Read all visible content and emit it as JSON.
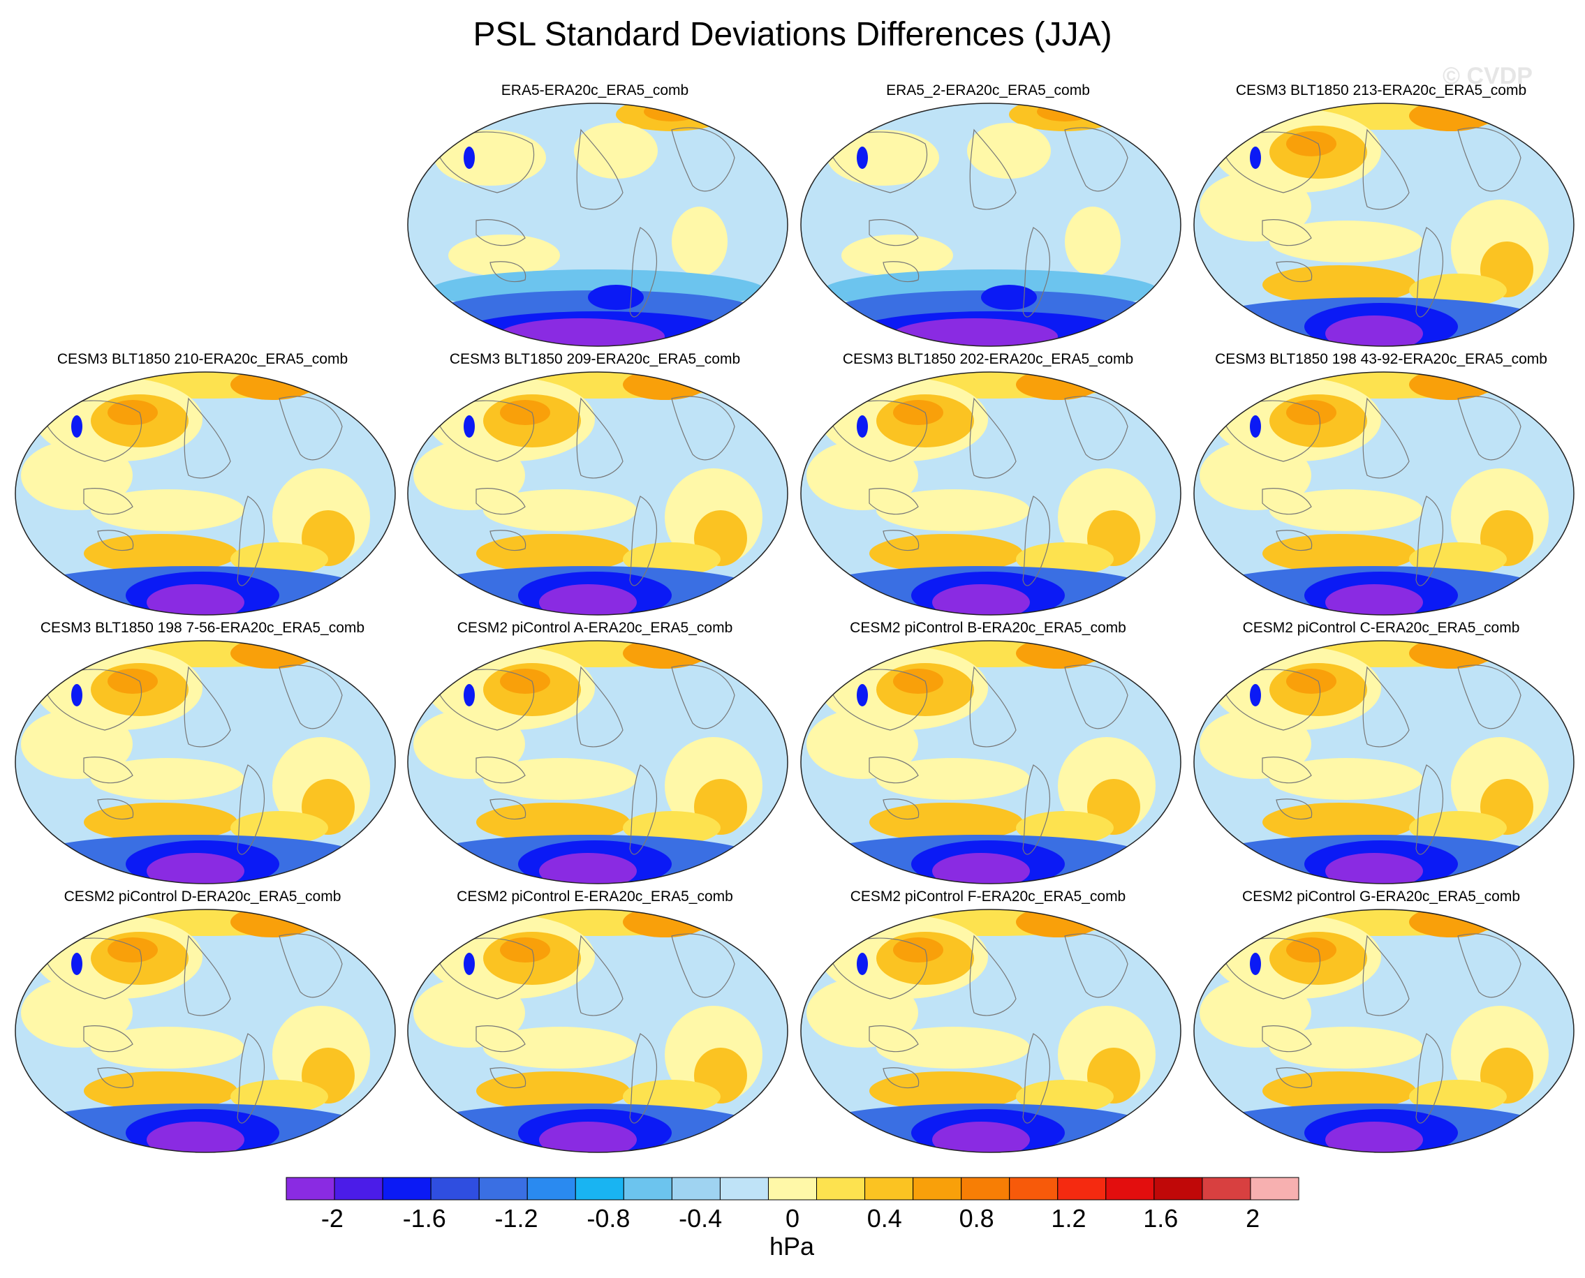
{
  "title": "PSL Standard Deviations Differences (JJA)",
  "watermark": "© CVDP",
  "panels": [
    {
      "label": "ERA5-ERA20c_ERA5_comb",
      "anomaly": "negative"
    },
    {
      "label": "ERA5_2-ERA20c_ERA5_comb",
      "anomaly": "negative"
    },
    {
      "label": "CESM3 BLT1850 213-ERA20c_ERA5_comb",
      "anomaly": "positive"
    },
    {
      "label": "CESM3 BLT1850 210-ERA20c_ERA5_comb",
      "anomaly": "positive"
    },
    {
      "label": "CESM3 BLT1850 209-ERA20c_ERA5_comb",
      "anomaly": "positive"
    },
    {
      "label": "CESM3 BLT1850 202-ERA20c_ERA5_comb",
      "anomaly": "positive"
    },
    {
      "label": "CESM3 BLT1850 198 43-92-ERA20c_ERA5_comb",
      "anomaly": "positive"
    },
    {
      "label": "CESM3 BLT1850 198 7-56-ERA20c_ERA5_comb",
      "anomaly": "positive"
    },
    {
      "label": "CESM2 piControl A-ERA20c_ERA5_comb",
      "anomaly": "positive"
    },
    {
      "label": "CESM2 piControl B-ERA20c_ERA5_comb",
      "anomaly": "positive"
    },
    {
      "label": "CESM2 piControl C-ERA20c_ERA5_comb",
      "anomaly": "positive"
    },
    {
      "label": "CESM2 piControl D-ERA20c_ERA5_comb",
      "anomaly": "positive"
    },
    {
      "label": "CESM2 piControl E-ERA20c_ERA5_comb",
      "anomaly": "positive"
    },
    {
      "label": "CESM2 piControl F-ERA20c_ERA5_comb",
      "anomaly": "positive"
    },
    {
      "label": "CESM2 piControl G-ERA20c_ERA5_comb",
      "anomaly": "positive"
    }
  ],
  "colorbar": {
    "unit": "hPa",
    "range": [
      -2.2,
      2.2
    ],
    "tick_labels": [
      "-2",
      "-1.6",
      "-1.2",
      "-0.8",
      "-0.4",
      "0",
      "0.4",
      "0.8",
      "1.2",
      "1.6",
      "2"
    ],
    "colors": [
      "#8a2be2",
      "#4b1ce8",
      "#0b1af5",
      "#2f4ee0",
      "#3a6fe3",
      "#2a8af0",
      "#19b4f2",
      "#6cc4ee",
      "#9fd3f1",
      "#bfe3f7",
      "#fff8a8",
      "#fde24f",
      "#fbc322",
      "#f9a00a",
      "#f77e05",
      "#f75a0a",
      "#f52a10",
      "#e30e0e",
      "#c00808",
      "#d84040",
      "#f7b0b0"
    ]
  }
}
